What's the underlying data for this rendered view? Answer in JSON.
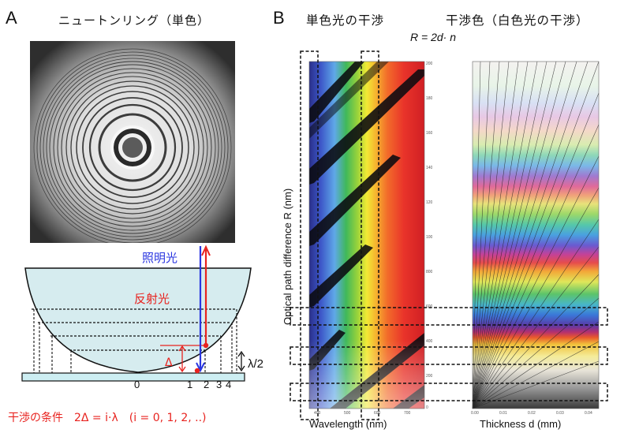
{
  "panel_a": {
    "letter": "A",
    "title": "ニュートンリング（単色）",
    "labels": {
      "illumination": "照明光",
      "reflection": "反射光",
      "delta": "Δ",
      "half_lambda": "λ/2"
    },
    "ring_numbers": [
      "0",
      "1",
      "2",
      "3",
      "4"
    ],
    "condition": "干渉の条件　2Δ = i·λ　(i = 0, 1, 2, ..)"
  },
  "panel_b": {
    "letter": "B",
    "title_mono": "単色光の干渉",
    "title_color": "干渉色（白色光の干渉）",
    "formula": "R = 2d· n",
    "ylabel": "Optical path difference R (nm)",
    "xlabel_left": "Wavelength (nm)",
    "xlabel_right": "Thickness d (mm)",
    "left_ticks_y": [
      "2000",
      "1800",
      "1600",
      "1400",
      "1200",
      "1000",
      "800",
      "600",
      "400",
      "200",
      "0"
    ],
    "left_ticks_x": [
      "400",
      "500",
      "600",
      "700"
    ],
    "right_ticks_x": [
      "0.00",
      "0.01",
      "0.02",
      "0.03",
      "0.04"
    ]
  },
  "colors": {
    "red": "#e8231f",
    "blue": "#2a36e0",
    "lens": "#d6ecef",
    "glass": "#cdeef2"
  }
}
